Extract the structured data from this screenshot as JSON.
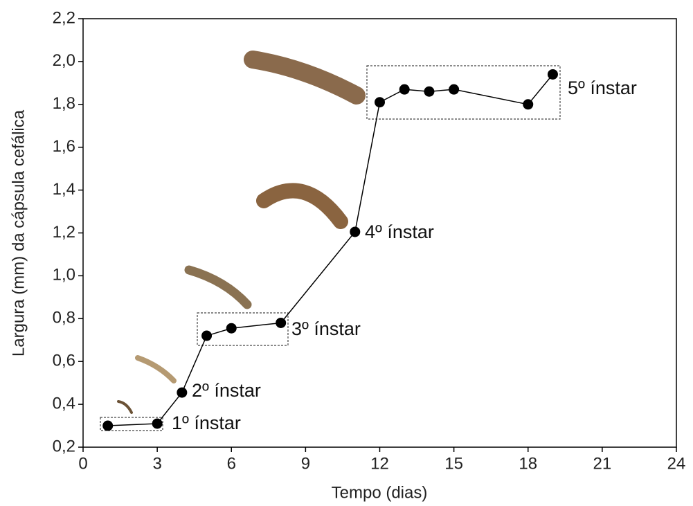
{
  "chart_data": {
    "type": "line",
    "xlabel": "Tempo (dias)",
    "ylabel": "Largura (mm) da cápsula cefálica",
    "x": [
      1,
      3,
      4,
      5,
      6,
      8,
      11,
      12,
      13,
      14,
      15,
      18,
      19
    ],
    "series": [
      {
        "color": "#000000",
        "values": [
          0.3,
          0.31,
          0.455,
          0.72,
          0.755,
          0.78,
          1.205,
          1.81,
          1.87,
          1.86,
          1.87,
          1.8,
          1.94
        ]
      }
    ],
    "xlim": [
      0,
      24
    ],
    "xticks": [
      0,
      3,
      6,
      9,
      12,
      15,
      18,
      21,
      24
    ],
    "ylim": [
      0.2,
      2.2
    ],
    "yticks": [
      {
        "value": 0.2,
        "label": "0,2"
      },
      {
        "value": 0.4,
        "label": "0,4"
      },
      {
        "value": 0.6,
        "label": "0,6"
      },
      {
        "value": 0.8,
        "label": "0,8"
      },
      {
        "value": 1.0,
        "label": "1,0"
      },
      {
        "value": 1.2,
        "label": "1,2"
      },
      {
        "value": 1.4,
        "label": "1,4"
      },
      {
        "value": 1.6,
        "label": "1,6"
      },
      {
        "value": 1.8,
        "label": "1,8"
      },
      {
        "value": 2.0,
        "label": "2,0"
      },
      {
        "value": 2.2,
        "label": "2,2"
      }
    ],
    "annotations": [
      "1º ínstar",
      "2º ínstar",
      "3º ínstar",
      "4º ínstar",
      "5º ínstar"
    ]
  }
}
